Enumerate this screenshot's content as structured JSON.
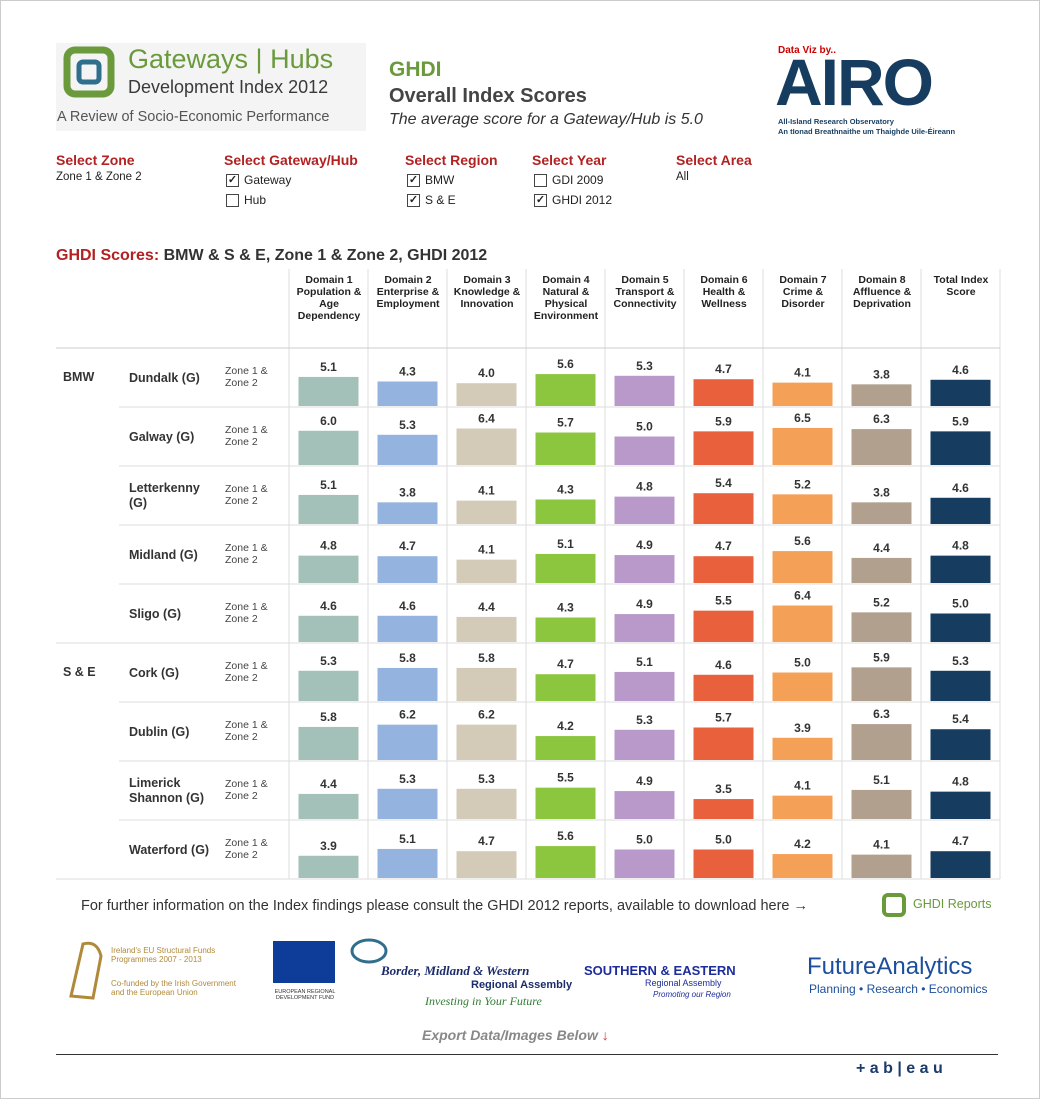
{
  "header": {
    "logo_title": "Gateways | Hubs",
    "logo_subtitle": "Development Index 2012",
    "logo_tagline": "A Review of Socio-Economic Performance",
    "title": "GHDI",
    "subtitle": "Overall Index Scores",
    "note": "The average score for a Gateway/Hub is 5.0",
    "airo_byline": "Data Viz by..",
    "airo_name": "AIRO",
    "airo_en": "All-Island Research Observatory",
    "airo_ga": "An tIonad Breathnaithe um Thaighde Uile-Éireann"
  },
  "filters": [
    {
      "label": "Select Zone",
      "value": "Zone 1 & Zone 2"
    },
    {
      "label": "Select Gateway/Hub",
      "options": [
        {
          "name": "Gateway",
          "checked": true
        },
        {
          "name": "Hub",
          "checked": false
        }
      ]
    },
    {
      "label": "Select Region",
      "options": [
        {
          "name": "BMW",
          "checked": true
        },
        {
          "name": "S & E",
          "checked": true
        }
      ]
    },
    {
      "label": "Select Year",
      "options": [
        {
          "name": "GDI 2009",
          "checked": false
        },
        {
          "name": "GHDI 2012",
          "checked": true
        }
      ]
    },
    {
      "label": "Select Area",
      "value": "All"
    }
  ],
  "chart_data": {
    "type": "bar",
    "title": "GHDI Scores:",
    "subtitle": "BMW & S & E, Zone 1 & Zone 2, GHDI 2012",
    "columns": [
      "Domain 1 Population & Age Dependency",
      "Domain 2 Enterprise & Employment",
      "Domain 3 Knowledge & Innovation",
      "Domain 4 Natural & Physical Environment",
      "Domain 5 Transport & Connectivity",
      "Domain 6 Health & Wellness",
      "Domain 7 Crime & Disorder",
      "Domain 8 Affluence & Deprivation",
      "Total Index Score"
    ],
    "colors": [
      "#a3c1b8",
      "#94b3de",
      "#d3cbb8",
      "#8cc63f",
      "#b899c9",
      "#e8603c",
      "#f5a057",
      "#b2a08e",
      "#163d5f"
    ],
    "ylim": [
      0,
      10
    ],
    "rows": [
      {
        "region": "BMW",
        "name": "Dundalk (G)",
        "zone": "Zone 1 & Zone 2",
        "values": [
          5.1,
          4.3,
          4.0,
          5.6,
          5.3,
          4.7,
          4.1,
          3.8,
          4.6
        ],
        "value_labels": [
          "5.1",
          "4.3",
          "4.0",
          "5.6",
          "5.3",
          "4.7",
          "4.1",
          "3.8",
          "4.6"
        ]
      },
      {
        "name": "Galway (G)",
        "zone": "Zone 1 & Zone 2",
        "values": [
          6.0,
          5.3,
          6.4,
          5.7,
          5.0,
          5.9,
          6.5,
          6.3,
          5.9
        ],
        "value_labels": [
          "6.0",
          "5.3",
          "6.4",
          "5.7",
          "5.0",
          "5.9",
          "6.5",
          "6.3",
          "5.9"
        ]
      },
      {
        "name": "Letterkenny (G)",
        "zone": "Zone 1 & Zone 2",
        "values": [
          5.1,
          3.8,
          4.1,
          4.3,
          4.8,
          5.4,
          5.2,
          3.8,
          4.6
        ],
        "value_labels": [
          "5.1",
          "3.8",
          "4.1",
          "4.3",
          "4.8",
          "5.4",
          "5.2",
          "3.8",
          "4.6"
        ]
      },
      {
        "name": "Midland (G)",
        "zone": "Zone 1 & Zone 2",
        "values": [
          4.8,
          4.7,
          4.1,
          5.1,
          4.9,
          4.7,
          5.6,
          4.4,
          4.8
        ],
        "value_labels": [
          "4.8",
          "4.7",
          "4.1",
          "5.1",
          "4.9",
          "4.7",
          "5.6",
          "4.4",
          "4.8"
        ]
      },
      {
        "name": "Sligo (G)",
        "zone": "Zone 1 & Zone 2",
        "values": [
          4.6,
          4.6,
          4.4,
          4.3,
          4.9,
          5.5,
          6.4,
          5.2,
          5.0
        ],
        "value_labels": [
          "4.6",
          "4.6",
          "4.4",
          "4.3",
          "4.9",
          "5.5",
          "6.4",
          "5.2",
          "5.0"
        ]
      },
      {
        "region": "S & E",
        "name": "Cork (G)",
        "zone": "Zone 1 & Zone 2",
        "values": [
          5.3,
          5.8,
          5.8,
          4.7,
          5.1,
          4.6,
          5.0,
          5.9,
          5.3
        ],
        "value_labels": [
          "5.3",
          "5.8",
          "5.8",
          "4.7",
          "5.1",
          "4.6",
          "5.0",
          "5.9",
          "5.3"
        ]
      },
      {
        "name": "Dublin (G)",
        "zone": "Zone 1 & Zone 2",
        "values": [
          5.8,
          6.2,
          6.2,
          4.2,
          5.3,
          5.7,
          3.9,
          6.3,
          5.4
        ],
        "value_labels": [
          "5.8",
          "6.2",
          "6.2",
          "4.2",
          "5.3",
          "5.7",
          "3.9",
          "6.3",
          "5.4"
        ]
      },
      {
        "name": "Limerick Shannon (G)",
        "zone": "Zone 1 & Zone 2",
        "values": [
          4.4,
          5.3,
          5.3,
          5.5,
          4.9,
          3.5,
          4.1,
          5.1,
          4.8
        ],
        "value_labels": [
          "4.4",
          "5.3",
          "5.3",
          "5.5",
          "4.9",
          "3.5",
          "4.1",
          "5.1",
          "4.8"
        ]
      },
      {
        "name": "Waterford (G)",
        "zone": "Zone 1 & Zone 2",
        "values": [
          3.9,
          5.1,
          4.7,
          5.6,
          5.0,
          5.0,
          4.2,
          4.1,
          4.7
        ],
        "value_labels": [
          "3.9",
          "5.1",
          "4.7",
          "5.6",
          "5.0",
          "5.0",
          "4.2",
          "4.1",
          "4.7"
        ]
      }
    ]
  },
  "footer": {
    "info": "For further information on the Index findings please consult the GHDI 2012 reports, available to download here →",
    "reports": "GHDI Reports",
    "eu_title": "Ireland's EU Structural Funds Programmes 2007 - 2013",
    "eu_cofund": "Co-funded by the Irish Government and the European Union",
    "erdf": "EUROPEAN REGIONAL DEVELOPMENT FUND",
    "bmw_name": "Border, Midland & Western",
    "bmw_assembly": "Regional Assembly",
    "bmw_slogan": "Investing in Your Future",
    "se_name": "SOUTHERN & EASTERN",
    "se_assembly": "Regional Assembly",
    "se_slogan": "Promoting our Region",
    "fa_name": "FutureAnalytics",
    "fa_tagline": "Planning • Research • Economics",
    "export": "Export Data/Images Below",
    "export_arrow": "↓",
    "tableau": "+ a b | e a u"
  }
}
